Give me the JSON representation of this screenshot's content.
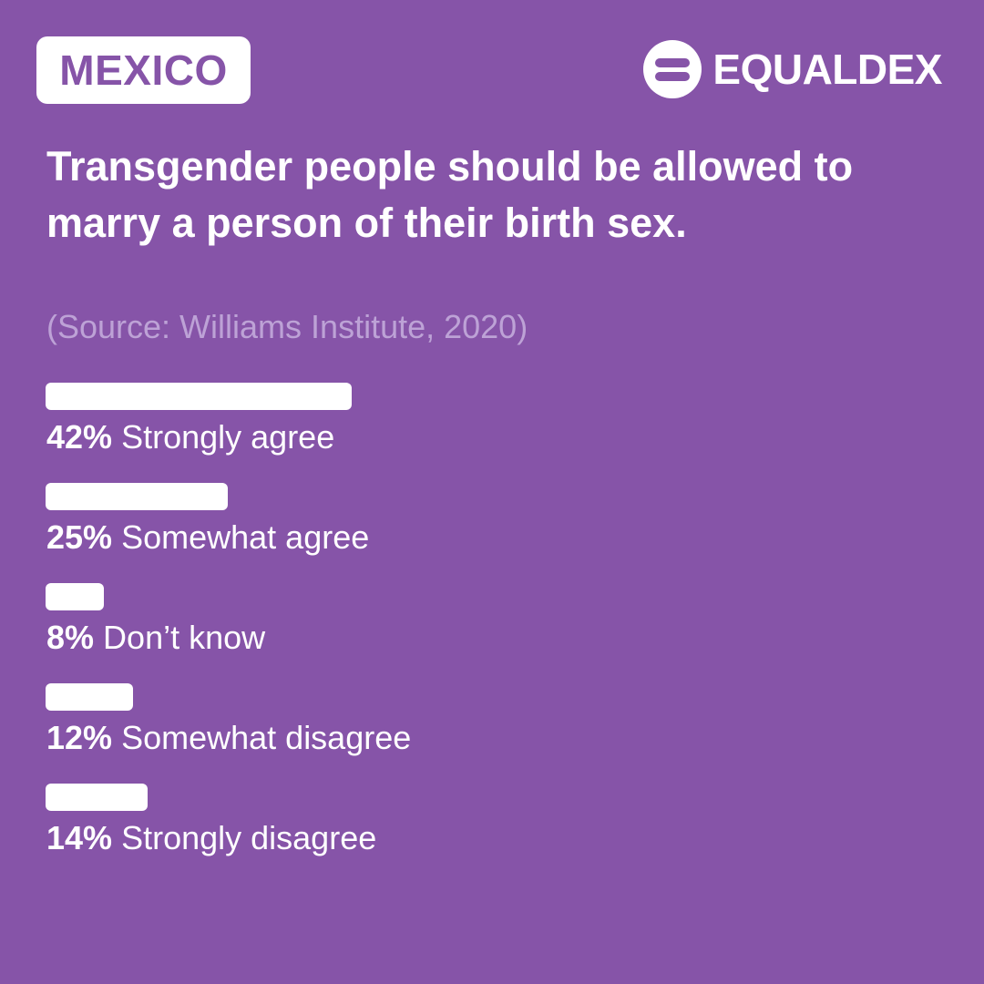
{
  "country": "MEXICO",
  "brand": {
    "name": "EQUALDEX",
    "icon": "equaldex-logo-icon"
  },
  "colors": {
    "background": "#8654a8",
    "bar": "#ffffff",
    "source_text": "#bda2d6"
  },
  "chart_data": {
    "type": "bar",
    "orientation": "horizontal",
    "title": "Transgender people should be allowed to marry a person of their birth sex.",
    "subtitle": "(Source: Williams Institute, 2020)",
    "categories": [
      "Strongly agree",
      "Somewhat agree",
      "Don’t know",
      "Somewhat disagree",
      "Strongly disagree"
    ],
    "values": [
      42,
      25,
      8,
      12,
      14
    ],
    "value_labels": [
      "42%",
      "25%",
      "8%",
      "12%",
      "14%"
    ],
    "unit": "%",
    "xlim": [
      0,
      100
    ],
    "grid": false
  }
}
